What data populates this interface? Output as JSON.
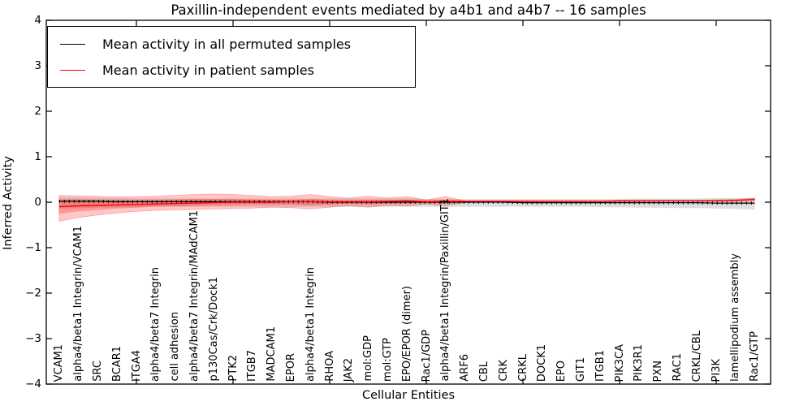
{
  "title": "Paxillin-independent events mediated by a4b1 and a4b7 -- 16 samples",
  "axes": {
    "x_label": "Cellular Entities",
    "y_label": "Inferred Activity",
    "y_ticks": [
      "4",
      "3",
      "2",
      "1",
      "0",
      "−1",
      "−2",
      "−3",
      "−4"
    ]
  },
  "legend": {
    "items": [
      {
        "label": "Mean activity in all permuted samples",
        "color": "#000000"
      },
      {
        "label": "Mean activity in patient samples",
        "color": "#ff0000"
      }
    ],
    "position": "upper left"
  },
  "colors": {
    "permuted_line": "#000000",
    "patient_line": "#ff0000",
    "permuted_band": "rgba(0,0,0,0.13)",
    "patient_band": "rgba(255,0,0,0.22)",
    "patient_band_inner": "rgba(255,0,0,0.25)",
    "spine": "#000000",
    "background": "#ffffff"
  },
  "chart_data": {
    "type": "line",
    "title": "Paxillin-independent events mediated by a4b1 and a4b7 -- 16 samples",
    "xlabel": "Cellular Entities",
    "ylabel": "Inferred Activity",
    "ylim": [
      -4,
      4
    ],
    "grid": false,
    "legend_position": "upper left",
    "x_major_tick_indices": [
      4,
      9,
      14,
      19,
      24,
      29,
      34
    ],
    "categories": [
      "VCAM1",
      "alpha4/beta1 Integrin/VCAM1",
      "SRC",
      "BCAR1",
      "ITGA4",
      "alpha4/beta7 Integrin",
      "cell adhesion",
      "alpha4/beta7 Integrin/MAdCAM1",
      "p130Cas/Crk/Dock1",
      "PTK2",
      "ITGB7",
      "MADCAM1",
      "EPOR",
      "alpha4/beta1 Integrin",
      "RHOA",
      "JAK2",
      "mol:GDP",
      "mol:GTP",
      "EPO/EPOR (dimer)",
      "Rac1/GDP",
      "alpha4/beta1 Integrin/Paxillin/GIT1",
      "ARF6",
      "CBL",
      "CRK",
      "CRKL",
      "DOCK1",
      "EPO",
      "GIT1",
      "ITGB1",
      "PIK3CA",
      "PIK3R1",
      "PXN",
      "RAC1",
      "CRKL/CBL",
      "PI3K",
      "lamellipodium assembly",
      "Rac1/GTP"
    ],
    "series": [
      {
        "name": "Mean activity in all permuted samples",
        "color": "#000000",
        "values": [
          0.02,
          0.02,
          0.02,
          0.01,
          0.01,
          0.01,
          0.01,
          0.01,
          0.01,
          0.01,
          0.01,
          0.01,
          0.01,
          0.01,
          0,
          0,
          0,
          0,
          0,
          0,
          0,
          0,
          0,
          0,
          -0.01,
          -0.01,
          -0.01,
          -0.01,
          -0.01,
          -0.01,
          -0.01,
          -0.01,
          -0.01,
          -0.01,
          -0.02,
          -0.02,
          -0.02
        ],
        "band_upper": [
          0.1,
          0.1,
          0.09,
          0.09,
          0.08,
          0.08,
          0.08,
          0.08,
          0.08,
          0.08,
          0.08,
          0.08,
          0.08,
          0.08,
          0.08,
          0.08,
          0.08,
          0.08,
          0.08,
          0.07,
          0.07,
          0.07,
          0.07,
          0.07,
          0.07,
          0.07,
          0.07,
          0.07,
          0.07,
          0.07,
          0.08,
          0.08,
          0.08,
          0.08,
          0.09,
          0.09,
          0.1
        ],
        "band_lower": [
          -0.14,
          -0.13,
          -0.12,
          -0.11,
          -0.11,
          -0.1,
          -0.1,
          -0.1,
          -0.1,
          -0.1,
          -0.1,
          -0.1,
          -0.1,
          -0.1,
          -0.1,
          -0.1,
          -0.1,
          -0.1,
          -0.1,
          -0.1,
          -0.1,
          -0.1,
          -0.1,
          -0.1,
          -0.1,
          -0.1,
          -0.1,
          -0.1,
          -0.11,
          -0.11,
          -0.12,
          -0.12,
          -0.13,
          -0.13,
          -0.14,
          -0.15,
          -0.16
        ]
      },
      {
        "name": "Mean activity in patient samples",
        "color": "#ff0000",
        "values": [
          -0.1,
          -0.08,
          -0.07,
          -0.06,
          -0.05,
          -0.04,
          -0.03,
          -0.02,
          -0.01,
          0,
          0,
          0,
          0.01,
          0.01,
          0.01,
          0.01,
          0.01,
          0.02,
          0.03,
          0.01,
          0.02,
          0.02,
          0.02,
          0.02,
          0.02,
          0.02,
          0.02,
          0.02,
          0.02,
          0.03,
          0.03,
          0.03,
          0.03,
          0.03,
          0.03,
          0.04,
          0.06
        ],
        "band_upper": [
          0.15,
          0.14,
          0.13,
          0.12,
          0.12,
          0.13,
          0.15,
          0.17,
          0.18,
          0.17,
          0.15,
          0.12,
          0.13,
          0.17,
          0.12,
          0.09,
          0.13,
          0.09,
          0.12,
          0.05,
          0.12,
          0.03,
          0.03,
          0.03,
          0.03,
          0.03,
          0.03,
          0.03,
          0.03,
          0.04,
          0.04,
          0.04,
          0.04,
          0.04,
          0.05,
          0.06,
          0.09
        ],
        "band_lower": [
          -0.42,
          -0.34,
          -0.28,
          -0.24,
          -0.2,
          -0.18,
          -0.17,
          -0.16,
          -0.15,
          -0.14,
          -0.13,
          -0.11,
          -0.12,
          -0.15,
          -0.11,
          -0.08,
          -0.11,
          -0.07,
          -0.08,
          -0.04,
          -0.08,
          -0.01,
          0,
          0,
          0,
          0.01,
          0.01,
          0.01,
          0.01,
          0.01,
          0.01,
          0.02,
          0.02,
          0.02,
          0.02,
          0.02,
          0.03
        ],
        "band_inner_upper": [
          0.06,
          0.06,
          0.05,
          0.05,
          0.05,
          0.05,
          0.06,
          0.07,
          0.07,
          0.07,
          0.06,
          0.05,
          0.05,
          0.07,
          0.05,
          0.04,
          0.05,
          0.04,
          0.05,
          0.03,
          0.05,
          0.03,
          0.03,
          0.03,
          0.03,
          0.03,
          0.03,
          0.03,
          0.03,
          0.04,
          0.04,
          0.04,
          0.04,
          0.04,
          0.04,
          0.05,
          0.07
        ],
        "band_inner_lower": [
          -0.25,
          -0.2,
          -0.17,
          -0.14,
          -0.12,
          -0.1,
          -0.09,
          -0.08,
          -0.07,
          -0.06,
          -0.05,
          -0.05,
          -0.05,
          -0.07,
          -0.05,
          -0.03,
          -0.05,
          -0.03,
          -0.03,
          -0.01,
          -0.03,
          0.01,
          0.01,
          0.01,
          0.01,
          0.01,
          0.01,
          0.01,
          0.01,
          0.02,
          0.02,
          0.02,
          0.02,
          0.02,
          0.02,
          0.03,
          0.05
        ]
      }
    ]
  }
}
